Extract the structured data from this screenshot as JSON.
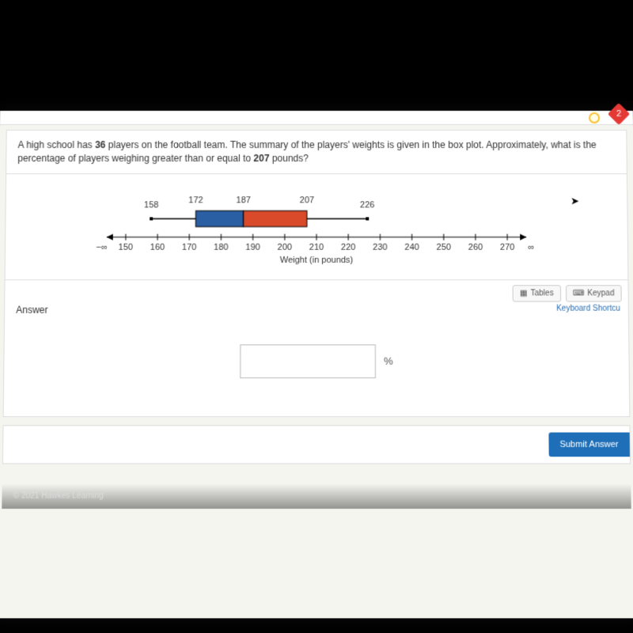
{
  "badge_count": "2",
  "question": {
    "text_a": "A high school has ",
    "n_players": "36",
    "text_b": " players on the football team.  The summary of the players' weights is given in the box plot.  Approximately, what is the percentage of players weighing greater than or equal to ",
    "threshold": "207",
    "text_c": " pounds?"
  },
  "boxplot": {
    "type": "boxplot",
    "min": 158,
    "q1": 172,
    "median": 187,
    "q3": 207,
    "max": 226,
    "min_label": "158",
    "q1_label": "172",
    "median_label": "187",
    "q3_label": "207",
    "max_label": "226",
    "axis_min": 150,
    "axis_max": 270,
    "tick_step": 10,
    "ticks": [
      "150",
      "160",
      "170",
      "180",
      "190",
      "200",
      "210",
      "220",
      "230",
      "240",
      "250",
      "260",
      "270"
    ],
    "neg_inf": "−∞",
    "pos_inf": "∞",
    "x_label": "Weight (in pounds)",
    "left_box_color": "#2b5fa3",
    "right_box_color": "#d94a2b",
    "whisker_color": "#000000",
    "axis_color": "#000000",
    "background_color": "#ffffff",
    "label_fontsize": 11
  },
  "answer": {
    "label": "Answer",
    "tables_btn": "Tables",
    "keypad_btn": "Keypad",
    "shortcut": "Keyboard Shortcu",
    "unit": "%",
    "value": ""
  },
  "submit_label": "Submit Answer",
  "copyright": "© 2021 Hawkes Learning"
}
